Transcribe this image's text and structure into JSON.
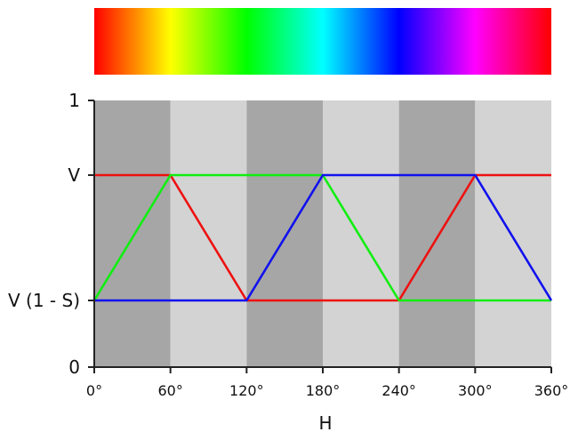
{
  "chart_data": {
    "type": "line",
    "xlabel": "H",
    "ylabel": "",
    "title": "",
    "xlim": [
      0,
      360
    ],
    "x_ticks": [
      0,
      60,
      120,
      180,
      240,
      300,
      360
    ],
    "x_tick_labels": [
      "0°",
      "60°",
      "120°",
      "180°",
      "240°",
      "300°",
      "360°"
    ],
    "y_ticks": [
      {
        "label": "1",
        "value": 1
      },
      {
        "label": "V",
        "value": 0.72
      },
      {
        "label": "V (1 - S)",
        "value": 0.25
      },
      {
        "label": "0",
        "value": 0
      }
    ],
    "hue_bar_colors": [
      "#ff0000",
      "#ffff00",
      "#00ff00",
      "#00ffff",
      "#0000ff",
      "#ff00ff",
      "#ff0000"
    ],
    "band_colors": [
      "#a6a6a6",
      "#d3d3d3"
    ],
    "grid": false,
    "legend": "none",
    "series": [
      {
        "color": "#ee1111",
        "x": [
          0,
          60,
          120,
          240,
          300,
          360
        ],
        "y": [
          0.72,
          0.72,
          0.25,
          0.25,
          0.72,
          0.72
        ]
      },
      {
        "color": "#11ee11",
        "x": [
          0,
          60,
          180,
          240,
          360
        ],
        "y": [
          0.25,
          0.72,
          0.72,
          0.25,
          0.25
        ]
      },
      {
        "color": "#1111ee",
        "x": [
          0,
          120,
          180,
          300,
          360
        ],
        "y": [
          0.25,
          0.25,
          0.72,
          0.72,
          0.25
        ]
      }
    ]
  }
}
